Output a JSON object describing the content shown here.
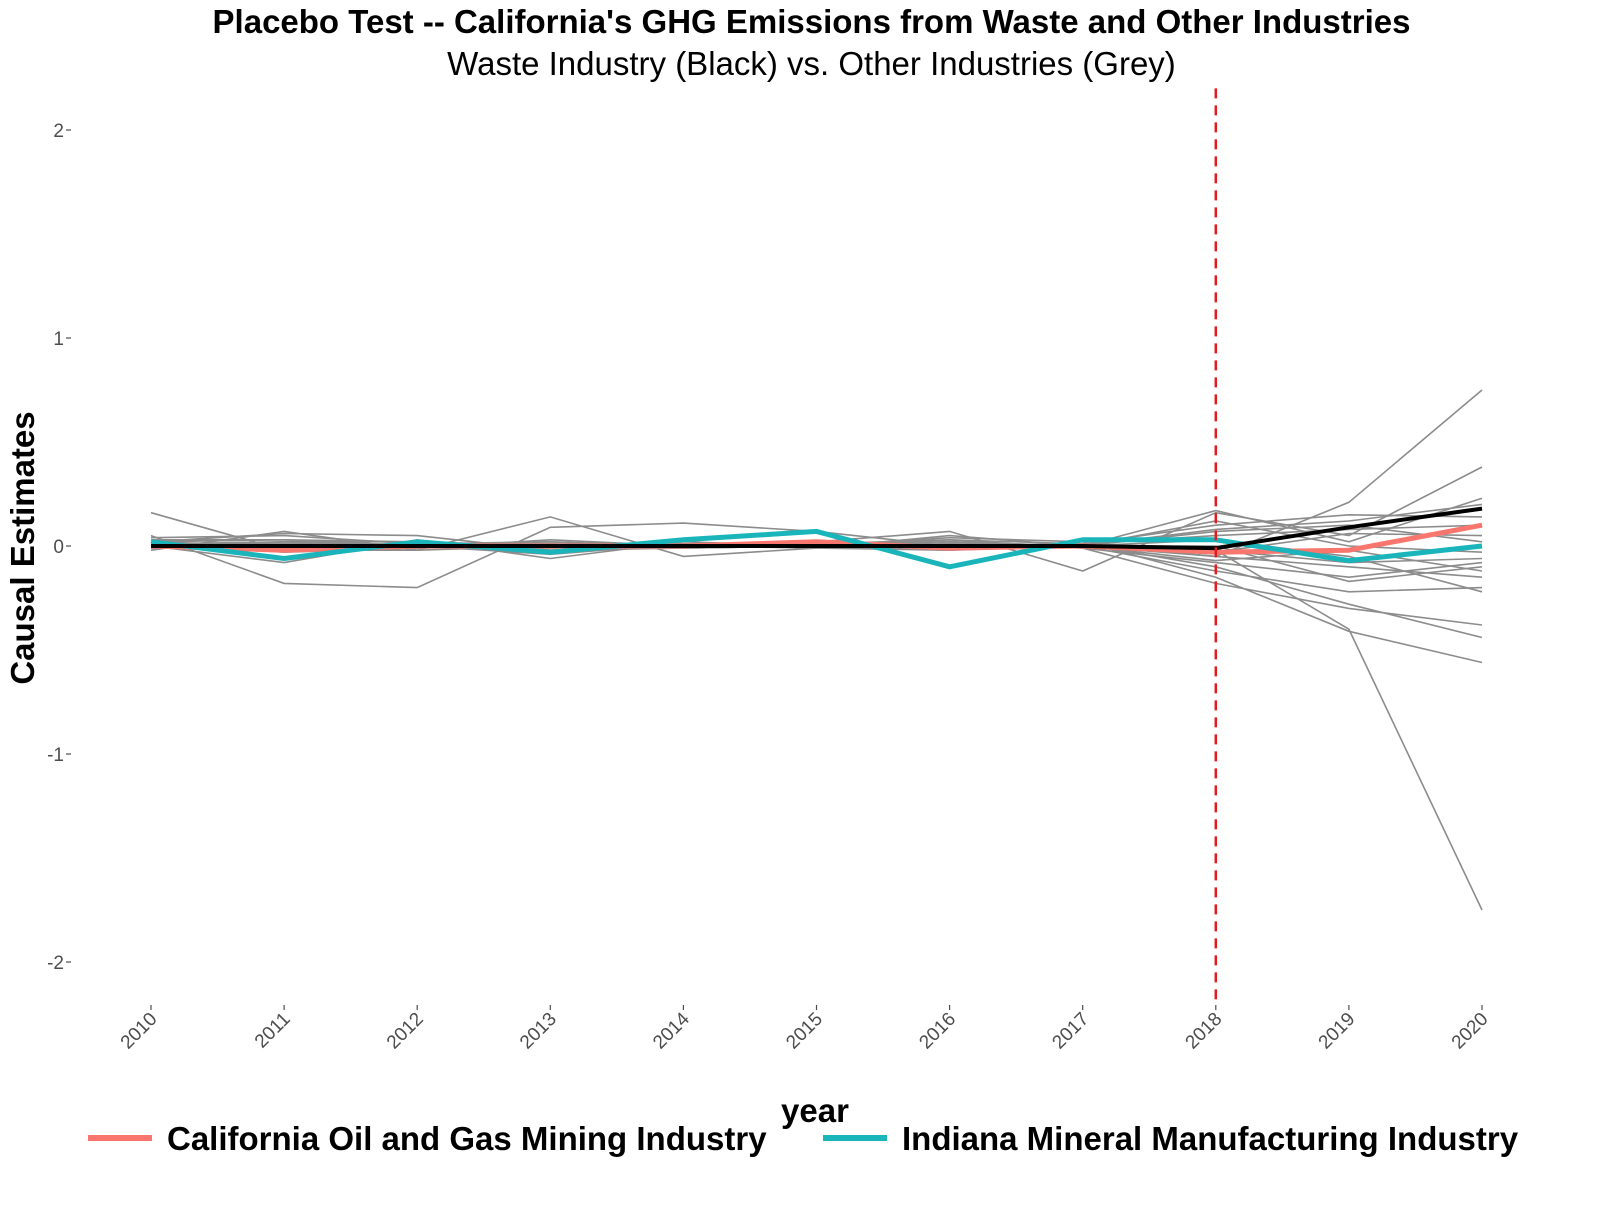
{
  "chart_data": {
    "type": "line",
    "title": "Placebo Test -- California's GHG Emissions from Waste and Other Industries",
    "subtitle": "Waste Industry (Black) vs. Other Industries (Grey)",
    "xlabel": "year",
    "ylabel": "Causal Estimates",
    "x": [
      2010,
      2011,
      2012,
      2013,
      2014,
      2015,
      2016,
      2017,
      2018,
      2019,
      2020
    ],
    "xticks": [
      "2010",
      "2011",
      "2012",
      "2013",
      "2014",
      "2015",
      "2016",
      "2017",
      "2018",
      "2019",
      "2020"
    ],
    "yticks": [
      "-2",
      "-1",
      "0",
      "1",
      "2"
    ],
    "ylim": [
      -2.2,
      2.2
    ],
    "grid": false,
    "legend_position": "bottom",
    "treatment_year": 2018,
    "treatment_line_color": "#e41a1c",
    "grey_color": "#8c8c8c",
    "grey_series": [
      [
        0.16,
        -0.02,
        0.0,
        0.01,
        0.0,
        0.01,
        0.02,
        0.0,
        -0.02,
        -0.4,
        -1.75
      ],
      [
        0.05,
        -0.18,
        -0.2,
        0.09,
        0.11,
        0.07,
        0.0,
        0.01,
        -0.05,
        0.21,
        0.75
      ],
      [
        0.02,
        0.06,
        0.05,
        -0.02,
        0.0,
        0.02,
        0.07,
        -0.12,
        0.16,
        0.05,
        0.38
      ],
      [
        -0.02,
        0.07,
        -0.02,
        0.14,
        -0.05,
        -0.01,
        0.05,
        0.0,
        0.17,
        0.02,
        0.23
      ],
      [
        0.0,
        -0.08,
        0.03,
        -0.06,
        0.02,
        0.0,
        0.04,
        0.02,
        -0.15,
        -0.41,
        -0.56
      ],
      [
        0.03,
        0.03,
        0.0,
        -0.04,
        0.01,
        0.0,
        0.03,
        0.01,
        -0.1,
        -0.28,
        -0.44
      ],
      [
        0.04,
        0.05,
        0.01,
        0.02,
        -0.01,
        0.0,
        0.02,
        -0.01,
        -0.18,
        -0.3,
        -0.38
      ],
      [
        -0.01,
        0.02,
        0.02,
        0.0,
        0.01,
        0.01,
        0.0,
        0.0,
        0.08,
        0.12,
        0.2
      ],
      [
        0.01,
        -0.03,
        -0.01,
        0.03,
        0.0,
        -0.01,
        -0.02,
        0.01,
        0.1,
        0.15,
        0.14
      ],
      [
        0.02,
        0.0,
        0.0,
        -0.02,
        0.0,
        0.0,
        0.01,
        0.0,
        -0.12,
        -0.22,
        -0.2
      ],
      [
        0.0,
        0.01,
        0.01,
        0.01,
        -0.01,
        0.0,
        -0.01,
        0.0,
        -0.05,
        -0.1,
        -0.15
      ],
      [
        0.0,
        0.02,
        -0.01,
        0.0,
        0.01,
        0.0,
        0.0,
        0.01,
        0.05,
        0.08,
        0.1
      ],
      [
        0.01,
        -0.02,
        0.01,
        -0.01,
        0.0,
        0.01,
        0.03,
        -0.01,
        -0.08,
        -0.15,
        -0.08
      ],
      [
        -0.01,
        0.0,
        0.0,
        0.02,
        0.0,
        0.0,
        -0.02,
        0.0,
        0.03,
        -0.05,
        -0.22
      ],
      [
        0.02,
        0.03,
        0.02,
        0.0,
        0.0,
        0.0,
        0.01,
        0.0,
        0.12,
        0.0,
        -0.03
      ],
      [
        0.0,
        -0.01,
        0.0,
        0.0,
        0.01,
        0.0,
        0.0,
        0.01,
        -0.03,
        0.06,
        0.05
      ],
      [
        0.01,
        0.01,
        0.0,
        -0.02,
        -0.01,
        0.0,
        0.02,
        0.0,
        0.0,
        -0.17,
        -0.1
      ],
      [
        0.0,
        0.0,
        0.01,
        0.0,
        0.0,
        0.01,
        0.0,
        0.0,
        -0.07,
        -0.02,
        -0.12
      ],
      [
        0.01,
        0.02,
        0.0,
        0.01,
        0.0,
        0.0,
        0.01,
        0.0,
        0.07,
        0.1,
        0.02
      ],
      [
        0.0,
        -0.02,
        -0.02,
        0.0,
        0.01,
        0.0,
        -0.01,
        0.0,
        -0.02,
        -0.08,
        -0.06
      ]
    ],
    "series": [
      {
        "name": "California Oil and Gas Mining Industry",
        "color": "#f8766d",
        "values": [
          0.0,
          -0.02,
          0.0,
          0.0,
          0.0,
          0.02,
          -0.01,
          0.0,
          -0.03,
          -0.02,
          0.1
        ]
      },
      {
        "name": "Indiana Mineral Manufacturing Industry",
        "color": "#1ab5ba",
        "values": [
          0.02,
          -0.06,
          0.02,
          -0.03,
          0.03,
          0.07,
          -0.1,
          0.03,
          0.03,
          -0.07,
          0.0
        ]
      }
    ],
    "black_series": {
      "color": "#000000",
      "values": [
        0.0,
        0.0,
        0.0,
        0.0,
        0.0,
        0.0,
        0.0,
        0.0,
        -0.01,
        0.09,
        0.18
      ]
    }
  }
}
